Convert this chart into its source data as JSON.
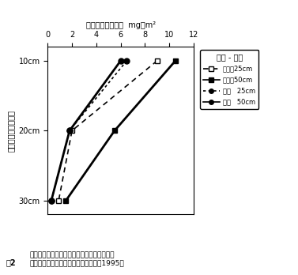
{
  "title_top": "ルビジウム吸収量  mg／m²",
  "ylabel": "ルビジウム洸入位置",
  "caption_left": "図2",
  "caption_right": "交互作圈場及び連作圈場におけるルビジウム\n吸収量によるインゲンの根活力分布（1995）",
  "legend_title": "作付 - 層厚",
  "legend_labels": [
    "交互作25cm",
    "交互作50cm",
    "連作   25cm",
    "連作   50cm"
  ],
  "ytick_labels": [
    "10cm",
    "20cm",
    "30cm"
  ],
  "ytick_values": [
    10,
    20,
    30
  ],
  "xlim": [
    0,
    12
  ],
  "ylim_bottom": 32,
  "ylim_top": 8,
  "xticks": [
    0,
    2,
    4,
    6,
    8,
    10,
    12
  ],
  "series": [
    {
      "name": "交互作25cm",
      "x": [
        9.0,
        2.0,
        0.9
      ],
      "y": [
        10,
        20,
        30
      ],
      "color": "#000000",
      "linestyle": "--",
      "marker": "s",
      "markerfacecolor": "white",
      "markeredgecolor": "#000000",
      "markersize": 5,
      "linewidth": 1.2,
      "dashes": [
        4,
        3
      ]
    },
    {
      "name": "交互作50cm",
      "x": [
        10.5,
        5.5,
        1.5
      ],
      "y": [
        10,
        20,
        30
      ],
      "color": "#000000",
      "linestyle": "-",
      "marker": "s",
      "markerfacecolor": "#000000",
      "markeredgecolor": "#000000",
      "markersize": 5,
      "linewidth": 2.0,
      "dashes": null
    },
    {
      "name": "連作   25cm",
      "x": [
        6.5,
        1.8,
        0.3
      ],
      "y": [
        10,
        20,
        30
      ],
      "color": "#000000",
      "linestyle": "--",
      "marker": "o",
      "markerfacecolor": "#000000",
      "markeredgecolor": "#000000",
      "markersize": 5,
      "linewidth": 1.2,
      "dashes": [
        2,
        2
      ]
    },
    {
      "name": "連作   50cm",
      "x": [
        6.0,
        1.8,
        0.3
      ],
      "y": [
        10,
        20,
        30
      ],
      "color": "#000000",
      "linestyle": "-",
      "marker": "o",
      "markerfacecolor": "#000000",
      "markeredgecolor": "#000000",
      "markersize": 5,
      "linewidth": 2.0,
      "dashes": null
    }
  ],
  "legend_markers": [
    "s",
    "s",
    "o",
    "o"
  ],
  "legend_linestyles": [
    "--",
    "-",
    "--",
    "-"
  ],
  "legend_facecolors": [
    "white",
    "#000000",
    "#000000",
    "#000000"
  ],
  "legend_dashes": [
    [
      4,
      3
    ],
    null,
    [
      2,
      2
    ],
    null
  ]
}
